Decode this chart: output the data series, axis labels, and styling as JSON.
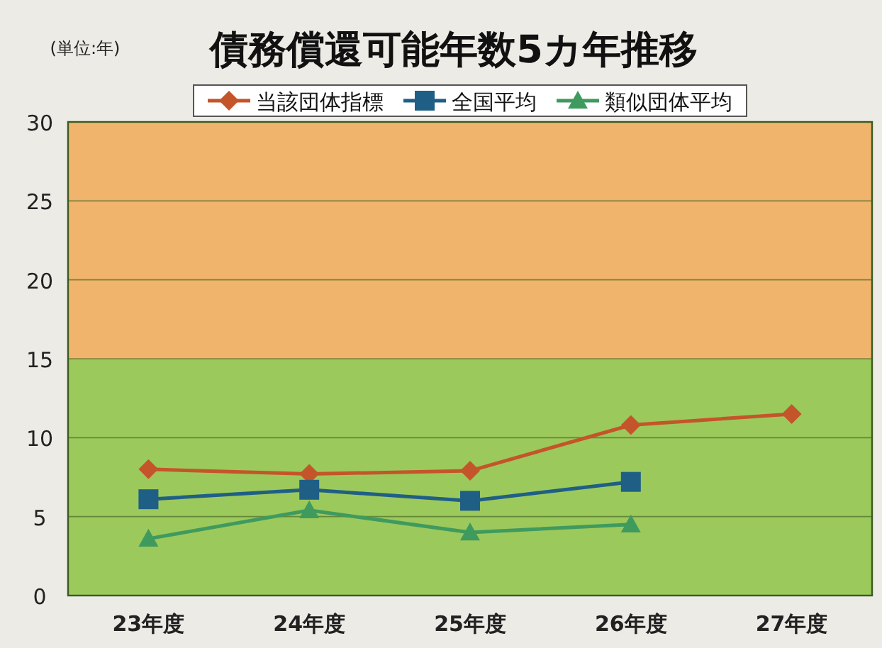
{
  "chart_data": {
    "type": "line",
    "title": "債務償還可能年数5カ年推移",
    "annotations": [
      "(単位:年)"
    ],
    "categories": [
      "23年度",
      "24年度",
      "25年度",
      "26年度",
      "27年度"
    ],
    "series": [
      {
        "name": "当該団体指標",
        "color": "#c4552a",
        "marker": "diamond",
        "values": [
          8.0,
          7.7,
          7.9,
          10.8,
          11.5
        ]
      },
      {
        "name": "全国平均",
        "color": "#1f5f86",
        "marker": "square",
        "values": [
          6.1,
          6.7,
          6.0,
          7.2,
          null
        ]
      },
      {
        "name": "類似団体平均",
        "color": "#3f9a5e",
        "marker": "triangle",
        "values": [
          3.6,
          5.4,
          4.0,
          4.5,
          null
        ]
      }
    ],
    "ylim": [
      0,
      30
    ],
    "yticks": [
      0,
      5,
      10,
      15,
      20,
      25,
      30
    ],
    "bands": [
      {
        "axis": "y",
        "from": 0,
        "to": 15,
        "color": "#9cc95c"
      },
      {
        "axis": "y",
        "from": 15,
        "to": 30,
        "color": "#f1b46c"
      }
    ],
    "grid": "y",
    "legend": "top",
    "line_style": "solid"
  }
}
